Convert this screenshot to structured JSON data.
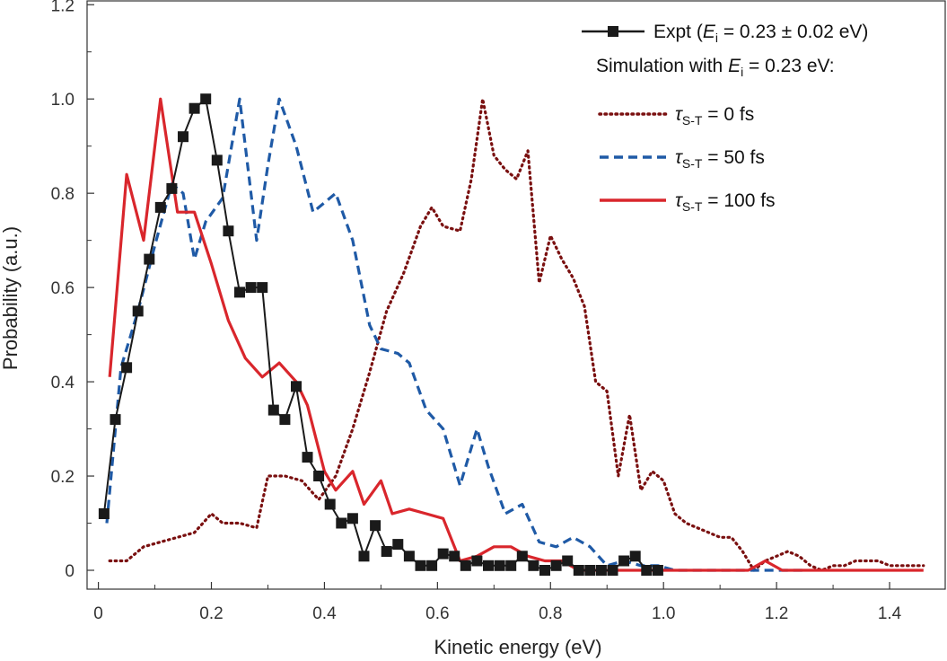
{
  "chart_data": {
    "type": "line",
    "xlabel": "Kinetic energy (eV)",
    "ylabel": "Probability (a.u.)",
    "xlim": [
      -0.02,
      1.5
    ],
    "ylim": [
      -0.04,
      1.21
    ],
    "xticks": [
      0,
      0.2,
      0.4,
      0.6,
      0.8,
      1.0,
      1.2,
      1.4
    ],
    "xtick_labels": [
      "0",
      "0.2",
      "0.4",
      "0.6",
      "0.8",
      "1.0",
      "1.2",
      "1.4"
    ],
    "yticks": [
      0,
      0.2,
      0.4,
      0.6,
      0.8,
      1.0,
      1.2
    ],
    "ytick_labels": [
      "0",
      "0.2",
      "0.4",
      "0.6",
      "0.8",
      "1.0",
      "1.2"
    ],
    "grid": false,
    "legend_position": "top-right",
    "legend": {
      "expt": {
        "pre": "Expt (",
        "E": "E",
        "sub": "i",
        "post": " = 0.23 ± 0.02 eV)"
      },
      "sim_header": {
        "pre": "Simulation with ",
        "E": "E",
        "sub": "i",
        "post": " = 0.23 eV:"
      },
      "tau0": {
        "tau": "τ",
        "sub": "S-T",
        "post": " = 0 fs"
      },
      "tau50": {
        "tau": "τ",
        "sub": "S-T",
        "post": " = 50 fs"
      },
      "tau100": {
        "tau": "τ",
        "sub": "S-T",
        "post": " = 100 fs"
      }
    },
    "series": [
      {
        "key": "expt",
        "color": "#1a1a1a",
        "style": "solid-square-markers",
        "x": [
          0.01,
          0.03,
          0.05,
          0.07,
          0.09,
          0.11,
          0.13,
          0.15,
          0.17,
          0.19,
          0.21,
          0.23,
          0.25,
          0.27,
          0.29,
          0.31,
          0.33,
          0.35,
          0.37,
          0.39,
          0.41,
          0.43,
          0.45,
          0.47,
          0.49,
          0.51,
          0.53,
          0.55,
          0.57,
          0.59,
          0.61,
          0.63,
          0.65,
          0.67,
          0.69,
          0.71,
          0.73,
          0.75,
          0.77,
          0.79,
          0.81,
          0.83,
          0.85,
          0.87,
          0.89,
          0.91,
          0.93,
          0.95,
          0.97,
          0.99
        ],
        "y": [
          0.12,
          0.32,
          0.43,
          0.55,
          0.66,
          0.77,
          0.81,
          0.92,
          0.98,
          1.0,
          0.87,
          0.72,
          0.59,
          0.6,
          0.6,
          0.34,
          0.32,
          0.39,
          0.24,
          0.2,
          0.14,
          0.1,
          0.11,
          0.03,
          0.095,
          0.04,
          0.055,
          0.03,
          0.01,
          0.01,
          0.035,
          0.03,
          0.01,
          0.02,
          0.01,
          0.01,
          0.01,
          0.03,
          0.01,
          0.0,
          0.01,
          0.02,
          0.0,
          0.0,
          0.0,
          0.0,
          0.02,
          0.03,
          0.0,
          0.0
        ]
      },
      {
        "key": "tau0",
        "color": "#7a1010",
        "style": "dotted",
        "x": [
          0.02,
          0.05,
          0.08,
          0.11,
          0.14,
          0.17,
          0.2,
          0.22,
          0.25,
          0.28,
          0.3,
          0.33,
          0.36,
          0.39,
          0.42,
          0.45,
          0.48,
          0.51,
          0.54,
          0.57,
          0.59,
          0.61,
          0.64,
          0.66,
          0.68,
          0.7,
          0.72,
          0.74,
          0.76,
          0.78,
          0.8,
          0.82,
          0.84,
          0.86,
          0.88,
          0.9,
          0.92,
          0.94,
          0.96,
          0.98,
          1.0,
          1.02,
          1.04,
          1.06,
          1.08,
          1.1,
          1.12,
          1.14,
          1.16,
          1.18,
          1.2,
          1.22,
          1.24,
          1.26,
          1.28,
          1.3,
          1.32,
          1.34,
          1.36,
          1.38,
          1.4,
          1.42,
          1.44,
          1.46
        ],
        "y": [
          0.02,
          0.02,
          0.05,
          0.06,
          0.07,
          0.08,
          0.12,
          0.1,
          0.1,
          0.09,
          0.2,
          0.2,
          0.19,
          0.15,
          0.2,
          0.3,
          0.42,
          0.55,
          0.63,
          0.73,
          0.77,
          0.73,
          0.72,
          0.83,
          1.0,
          0.88,
          0.85,
          0.83,
          0.89,
          0.61,
          0.71,
          0.66,
          0.62,
          0.56,
          0.4,
          0.38,
          0.2,
          0.33,
          0.17,
          0.21,
          0.19,
          0.12,
          0.1,
          0.09,
          0.08,
          0.07,
          0.07,
          0.04,
          0.0,
          0.02,
          0.03,
          0.04,
          0.03,
          0.01,
          0.0,
          0.01,
          0.01,
          0.02,
          0.02,
          0.02,
          0.01,
          0.01,
          0.01,
          0.01
        ]
      },
      {
        "key": "tau50",
        "color": "#1f5aa6",
        "style": "dashed",
        "x": [
          0.015,
          0.04,
          0.07,
          0.1,
          0.13,
          0.15,
          0.17,
          0.19,
          0.22,
          0.25,
          0.28,
          0.3,
          0.32,
          0.35,
          0.38,
          0.42,
          0.45,
          0.48,
          0.5,
          0.53,
          0.55,
          0.58,
          0.61,
          0.64,
          0.67,
          0.69,
          0.72,
          0.75,
          0.78,
          0.81,
          0.84,
          0.87,
          0.9,
          0.93,
          0.96,
          0.99,
          1.02,
          1.05,
          1.1,
          1.15,
          1.2,
          1.25
        ],
        "y": [
          0.1,
          0.43,
          0.55,
          0.69,
          0.82,
          0.8,
          0.66,
          0.74,
          0.79,
          1.0,
          0.7,
          0.86,
          1.0,
          0.9,
          0.76,
          0.8,
          0.7,
          0.52,
          0.47,
          0.46,
          0.44,
          0.34,
          0.3,
          0.18,
          0.3,
          0.22,
          0.12,
          0.14,
          0.06,
          0.05,
          0.07,
          0.05,
          0.01,
          0.02,
          0.01,
          0.01,
          0.0,
          0.0,
          0.0,
          0.0,
          0.0,
          0.0
        ]
      },
      {
        "key": "tau100",
        "color": "#d9262c",
        "style": "solid",
        "x": [
          0.02,
          0.05,
          0.08,
          0.11,
          0.14,
          0.17,
          0.2,
          0.23,
          0.26,
          0.29,
          0.32,
          0.35,
          0.37,
          0.4,
          0.42,
          0.45,
          0.47,
          0.5,
          0.52,
          0.55,
          0.58,
          0.61,
          0.64,
          0.67,
          0.7,
          0.73,
          0.76,
          0.79,
          0.82,
          0.85,
          0.88,
          0.91,
          0.94,
          0.97,
          1.0,
          1.05,
          1.1,
          1.15,
          1.18,
          1.21,
          1.3,
          1.4,
          1.46
        ],
        "y": [
          0.41,
          0.84,
          0.7,
          1.0,
          0.76,
          0.76,
          0.65,
          0.53,
          0.45,
          0.41,
          0.44,
          0.4,
          0.35,
          0.21,
          0.17,
          0.21,
          0.14,
          0.19,
          0.12,
          0.13,
          0.12,
          0.11,
          0.02,
          0.03,
          0.05,
          0.05,
          0.03,
          0.02,
          0.02,
          0.0,
          0.0,
          0.0,
          0.0,
          0.0,
          0.0,
          0.0,
          0.0,
          0.0,
          0.02,
          0.0,
          0.0,
          0.0,
          0.0
        ]
      }
    ]
  }
}
